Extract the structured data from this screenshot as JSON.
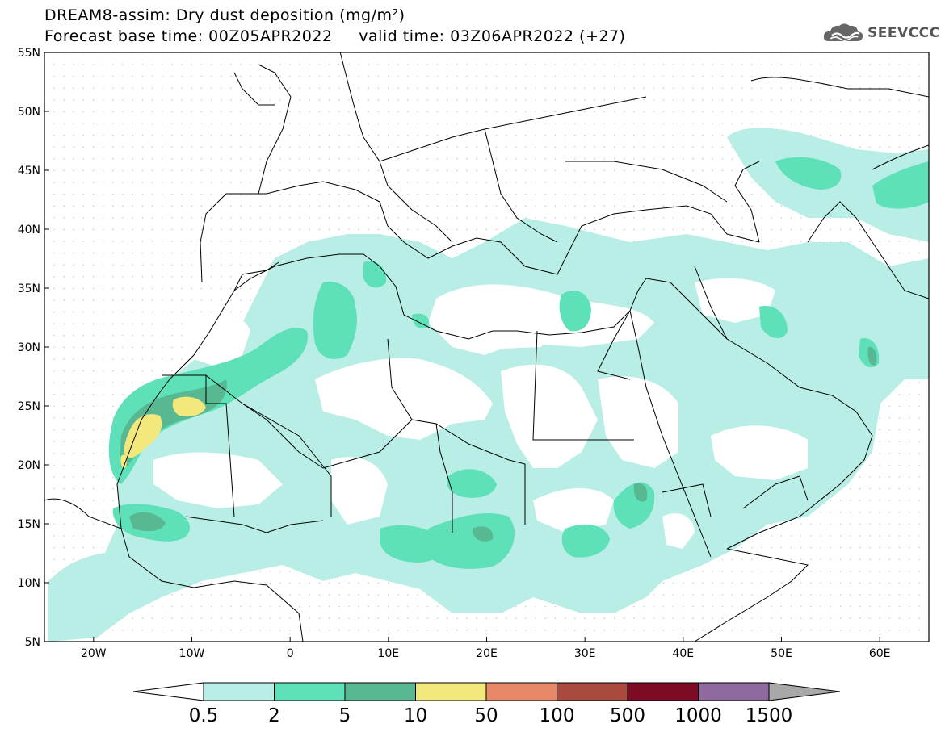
{
  "title_line1": "DREAM8-assim: Dry dust deposition (mg/m²)",
  "title_line2": "Forecast base time: 00Z05APR2022     valid time: 03Z06APR2022 (+27)",
  "logo": {
    "text": "SEEVCCC",
    "icon": "cloud-icon"
  },
  "map": {
    "lon_range": [
      -25,
      65
    ],
    "lat_range": [
      5,
      55
    ],
    "lat_ticks": [
      "55N",
      "50N",
      "45N",
      "40N",
      "35N",
      "30N",
      "25N",
      "20N",
      "15N",
      "10N",
      "5N"
    ],
    "lon_ticks": [
      "20W",
      "10W",
      "0",
      "10E",
      "20E",
      "30E",
      "40E",
      "50E",
      "60E"
    ]
  },
  "colorbar": {
    "labels": [
      "0.5",
      "2",
      "5",
      "10",
      "50",
      "100",
      "500",
      "1000",
      "1500"
    ],
    "colors": [
      "#b9eee6",
      "#5ee0b8",
      "#58b891",
      "#f2e87c",
      "#e8886a",
      "#a84a3e",
      "#7d0b24",
      "#8f6a9e"
    ],
    "under_color": "#ffffff",
    "over_color": "#a8a8a8"
  },
  "dust_colors": {
    "light": "#b9eee6",
    "medium": "#5ee0b8",
    "dark": "#58b891",
    "yellow": "#f2e87c"
  }
}
